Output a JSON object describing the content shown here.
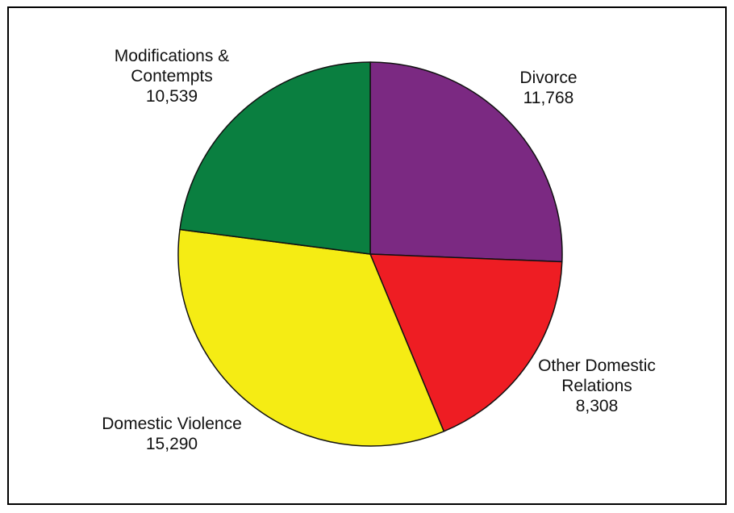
{
  "chart_data": {
    "type": "pie",
    "title": "",
    "slices": [
      {
        "label": [
          "Divorce"
        ],
        "value_text": "11,768",
        "value": 11768,
        "color": "#7B2982"
      },
      {
        "label": [
          "Other Domestic",
          "Relations"
        ],
        "value_text": "8,308",
        "value": 8308,
        "color": "#EE1D23"
      },
      {
        "label": [
          "Domestic Violence"
        ],
        "value_text": "15,290",
        "value": 15290,
        "color": "#F5EC14"
      },
      {
        "label": [
          "Modifications &",
          "Contempts"
        ],
        "value_text": "10,539",
        "value": 10539,
        "color": "#0A7F40"
      }
    ],
    "start_angle_deg": 0,
    "direction": "clockwise",
    "legend": "none",
    "label_placement": "outside"
  }
}
